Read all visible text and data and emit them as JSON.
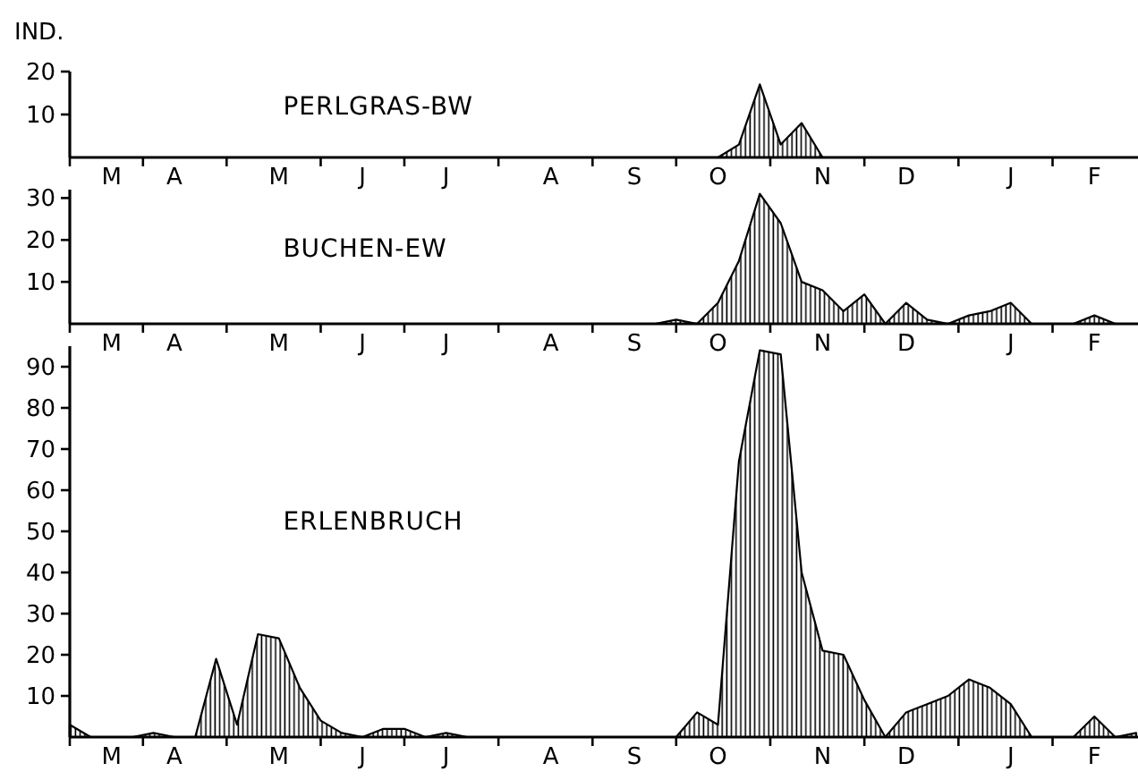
{
  "chart_data": [
    {
      "type": "area",
      "title": "PERLGRAS-BW",
      "ylabel": "IND.",
      "ylim": [
        0,
        20
      ],
      "yticks": [
        10,
        20
      ],
      "categories": [
        null,
        null,
        "M",
        null,
        null,
        "A",
        null,
        null,
        null,
        null,
        "M",
        null,
        null,
        null,
        "J",
        null,
        null,
        null,
        "J",
        null,
        null,
        null,
        null,
        "A",
        null,
        null,
        null,
        "S",
        null,
        null,
        null,
        "O",
        null,
        null,
        null,
        null,
        "N",
        null,
        null,
        null,
        "D",
        null,
        null,
        null,
        null,
        "J",
        null,
        null,
        null,
        "F",
        null,
        null
      ],
      "series": [
        {
          "color": "#000000",
          "values": [
            0,
            0,
            0,
            0,
            0,
            0,
            0,
            0,
            0,
            0,
            0,
            0,
            0,
            0,
            0,
            0,
            0,
            0,
            0,
            0,
            0,
            0,
            0,
            0,
            0,
            0,
            0,
            0,
            0,
            0,
            0,
            0,
            3,
            17,
            3,
            8,
            0,
            0,
            0,
            0,
            0,
            0,
            0,
            0,
            0,
            0,
            0,
            0,
            0,
            0,
            0,
            0
          ]
        }
      ]
    },
    {
      "type": "area",
      "title": "BUCHEN-EW",
      "ylim": [
        0,
        32
      ],
      "yticks": [
        10,
        20,
        30
      ],
      "categories": [
        null,
        null,
        "M",
        null,
        null,
        "A",
        null,
        null,
        null,
        null,
        "M",
        null,
        null,
        null,
        "J",
        null,
        null,
        null,
        "J",
        null,
        null,
        null,
        null,
        "A",
        null,
        null,
        null,
        "S",
        null,
        null,
        null,
        "O",
        null,
        null,
        null,
        null,
        "N",
        null,
        null,
        null,
        "D",
        null,
        null,
        null,
        null,
        "J",
        null,
        null,
        null,
        "F",
        null,
        null
      ],
      "series": [
        {
          "color": "#000000",
          "values": [
            0,
            0,
            0,
            0,
            0,
            0,
            0,
            0,
            0,
            0,
            0,
            0,
            0,
            0,
            0,
            0,
            0,
            0,
            0,
            0,
            0,
            0,
            0,
            0,
            0,
            0,
            0,
            0,
            0,
            1,
            0,
            5,
            15,
            31,
            24,
            10,
            8,
            3,
            7,
            0,
            5,
            1,
            0,
            2,
            3,
            5,
            0,
            0,
            0,
            2,
            0,
            0
          ]
        }
      ]
    },
    {
      "type": "area",
      "title": "ERLENBRUCH",
      "ylim": [
        0,
        95
      ],
      "yticks": [
        10,
        20,
        30,
        40,
        50,
        60,
        70,
        80,
        90
      ],
      "categories": [
        null,
        null,
        "M",
        null,
        null,
        "A",
        null,
        null,
        null,
        null,
        "M",
        null,
        null,
        null,
        "J",
        null,
        null,
        null,
        "J",
        null,
        null,
        null,
        null,
        "A",
        null,
        null,
        null,
        "S",
        null,
        null,
        null,
        "O",
        null,
        null,
        null,
        null,
        "N",
        null,
        null,
        null,
        "D",
        null,
        null,
        null,
        null,
        "J",
        null,
        null,
        null,
        "F",
        null,
        null
      ],
      "series": [
        {
          "color": "#000000",
          "values": [
            3,
            0,
            0,
            0,
            1,
            0,
            0,
            19,
            3,
            25,
            24,
            12,
            4,
            1,
            0,
            2,
            2,
            0,
            1,
            0,
            0,
            0,
            0,
            0,
            0,
            0,
            0,
            0,
            0,
            0,
            6,
            3,
            67,
            94,
            93,
            40,
            21,
            20,
            9,
            0,
            6,
            8,
            10,
            14,
            12,
            8,
            0,
            0,
            0,
            5,
            0,
            1
          ]
        }
      ]
    }
  ]
}
